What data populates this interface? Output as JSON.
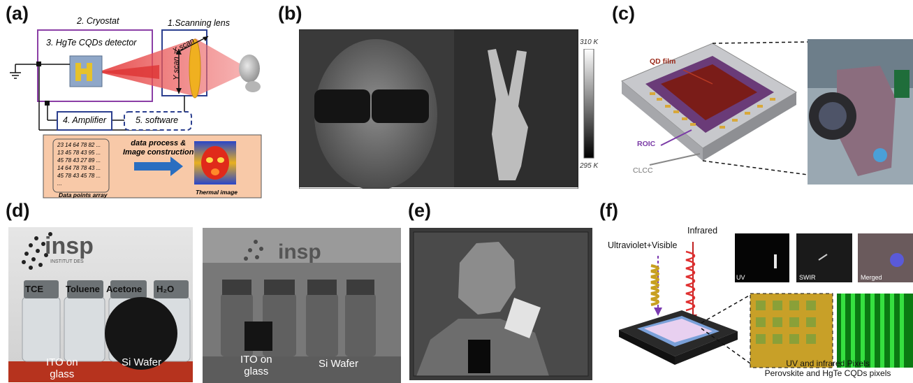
{
  "panels": {
    "a": {
      "label": "(a)",
      "cryostat": "2. Cryostat",
      "scanning_lens": "1.Scanning lens",
      "detector": "3. HgTe CQDs detector",
      "x_scan": "X scan",
      "y_scan": "Y scan",
      "amplifier": "4. Amplifier",
      "software": "5. software",
      "process": [
        "data process &",
        "Image construction"
      ],
      "data_rows": [
        "23 14 64 78 82 ...",
        "13 45 78 43 95 ...",
        "45 78 43 27 89 ...",
        "14 64 78 78 43 ...",
        "45 78 43 45 78 ...",
        "..."
      ],
      "data_points_label": "Data points array",
      "thermal_label": "Thermal image"
    },
    "b": {
      "label": "(b)",
      "colorbar_max": "310 K",
      "colorbar_min": "295 K"
    },
    "c": {
      "label": "(c)",
      "qd_film": "QD film",
      "roic": "ROIC",
      "clcc": "CLCC"
    },
    "d": {
      "label": "(d)",
      "logo": "insp",
      "logo_sub": "INSTITUT DES",
      "bottles": [
        "TCE",
        "Toluene",
        "Acetone",
        "H₂O"
      ],
      "ito": [
        "ITO on",
        "glass"
      ],
      "si_wafer": "Si Wafer",
      "ito_right": [
        "ITO on",
        "glass"
      ],
      "si_wafer_right": "Si Wafer"
    },
    "e": {
      "label": "(e)"
    },
    "f": {
      "label": "(f)",
      "uv_visible": "Ultraviolet+Visible",
      "infrared": "Infrared",
      "thumb_labels": [
        "UV",
        "SWIR",
        "Merged"
      ],
      "caption": [
        "UV and infrared Pixels",
        "Perovskite and HgTe CQDs pixels"
      ]
    }
  }
}
